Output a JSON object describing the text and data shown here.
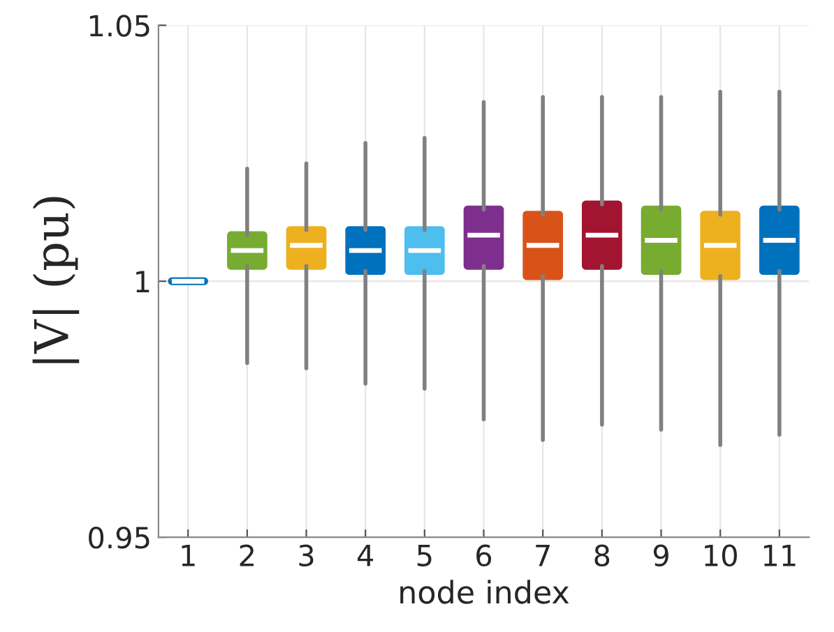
{
  "chart_data": {
    "type": "box",
    "xlabel": "node index",
    "ylabel": "|V| (pu)",
    "categories": [
      "1",
      "2",
      "3",
      "4",
      "5",
      "6",
      "7",
      "8",
      "9",
      "10",
      "11"
    ],
    "colors": [
      "#0072bd",
      "#77ac30",
      "#edb120",
      "#0072bd",
      "#4dbeee",
      "#7e2f8e",
      "#d95319",
      "#a2142f",
      "#77ac30",
      "#edb120",
      "#0072bd"
    ],
    "boxes": [
      {
        "low": 1.0,
        "q1": 1.0,
        "median": 1.0,
        "q3": 1.0,
        "high": 1.0
      },
      {
        "low": 0.984,
        "q1": 1.003,
        "median": 1.006,
        "q3": 1.009,
        "high": 1.022
      },
      {
        "low": 0.983,
        "q1": 1.003,
        "median": 1.007,
        "q3": 1.01,
        "high": 1.023
      },
      {
        "low": 0.98,
        "q1": 1.002,
        "median": 1.006,
        "q3": 1.01,
        "high": 1.027
      },
      {
        "low": 0.979,
        "q1": 1.002,
        "median": 1.006,
        "q3": 1.01,
        "high": 1.028
      },
      {
        "low": 0.973,
        "q1": 1.003,
        "median": 1.009,
        "q3": 1.014,
        "high": 1.035
      },
      {
        "low": 0.969,
        "q1": 1.001,
        "median": 1.007,
        "q3": 1.013,
        "high": 1.036
      },
      {
        "low": 0.972,
        "q1": 1.003,
        "median": 1.009,
        "q3": 1.015,
        "high": 1.036
      },
      {
        "low": 0.971,
        "q1": 1.002,
        "median": 1.008,
        "q3": 1.014,
        "high": 1.036
      },
      {
        "low": 0.968,
        "q1": 1.001,
        "median": 1.007,
        "q3": 1.013,
        "high": 1.037
      },
      {
        "low": 0.97,
        "q1": 1.002,
        "median": 1.008,
        "q3": 1.014,
        "high": 1.037
      }
    ],
    "ylim": [
      0.95,
      1.05
    ],
    "yticks": [
      0.95,
      1,
      1.05
    ],
    "grid": true
  }
}
